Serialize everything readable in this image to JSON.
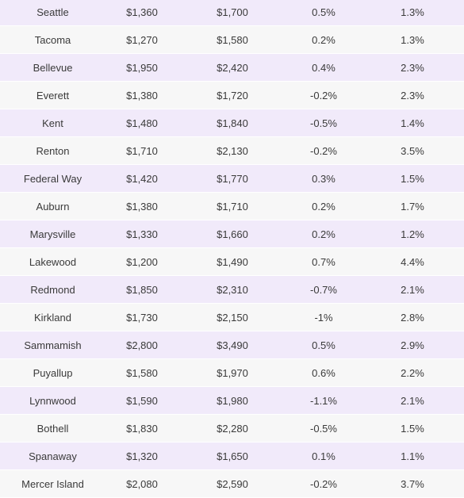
{
  "table": {
    "rows": [
      {
        "city": "Seattle",
        "one_br": "$1,360",
        "two_br": "$1,700",
        "mom": "0.5%",
        "yoy": "1.3%"
      },
      {
        "city": "Tacoma",
        "one_br": "$1,270",
        "two_br": "$1,580",
        "mom": "0.2%",
        "yoy": "1.3%"
      },
      {
        "city": "Bellevue",
        "one_br": "$1,950",
        "two_br": "$2,420",
        "mom": "0.4%",
        "yoy": "2.3%"
      },
      {
        "city": "Everett",
        "one_br": "$1,380",
        "two_br": "$1,720",
        "mom": "-0.2%",
        "yoy": "2.3%"
      },
      {
        "city": "Kent",
        "one_br": "$1,480",
        "two_br": "$1,840",
        "mom": "-0.5%",
        "yoy": "1.4%"
      },
      {
        "city": "Renton",
        "one_br": "$1,710",
        "two_br": "$2,130",
        "mom": "-0.2%",
        "yoy": "3.5%"
      },
      {
        "city": "Federal Way",
        "one_br": "$1,420",
        "two_br": "$1,770",
        "mom": "0.3%",
        "yoy": "1.5%"
      },
      {
        "city": "Auburn",
        "one_br": "$1,380",
        "two_br": "$1,710",
        "mom": "0.2%",
        "yoy": "1.7%"
      },
      {
        "city": "Marysville",
        "one_br": "$1,330",
        "two_br": "$1,660",
        "mom": "0.2%",
        "yoy": "1.2%"
      },
      {
        "city": "Lakewood",
        "one_br": "$1,200",
        "two_br": "$1,490",
        "mom": "0.7%",
        "yoy": "4.4%"
      },
      {
        "city": "Redmond",
        "one_br": "$1,850",
        "two_br": "$2,310",
        "mom": "-0.7%",
        "yoy": "2.1%"
      },
      {
        "city": "Kirkland",
        "one_br": "$1,730",
        "two_br": "$2,150",
        "mom": "-1%",
        "yoy": "2.8%"
      },
      {
        "city": "Sammamish",
        "one_br": "$2,800",
        "two_br": "$3,490",
        "mom": "0.5%",
        "yoy": "2.9%"
      },
      {
        "city": "Puyallup",
        "one_br": "$1,580",
        "two_br": "$1,970",
        "mom": "0.6%",
        "yoy": "2.2%"
      },
      {
        "city": "Lynnwood",
        "one_br": "$1,590",
        "two_br": "$1,980",
        "mom": "-1.1%",
        "yoy": "2.1%"
      },
      {
        "city": "Bothell",
        "one_br": "$1,830",
        "two_br": "$2,280",
        "mom": "-0.5%",
        "yoy": "1.5%"
      },
      {
        "city": "Spanaway",
        "one_br": "$1,320",
        "two_br": "$1,650",
        "mom": "0.1%",
        "yoy": "1.1%"
      },
      {
        "city": "Mercer Island",
        "one_br": "$2,080",
        "two_br": "$2,590",
        "mom": "-0.2%",
        "yoy": "3.7%"
      }
    ]
  },
  "colors": {
    "row_odd": "#f1eafa",
    "row_even": "#f7f7f7",
    "text": "#3a3a3a"
  }
}
